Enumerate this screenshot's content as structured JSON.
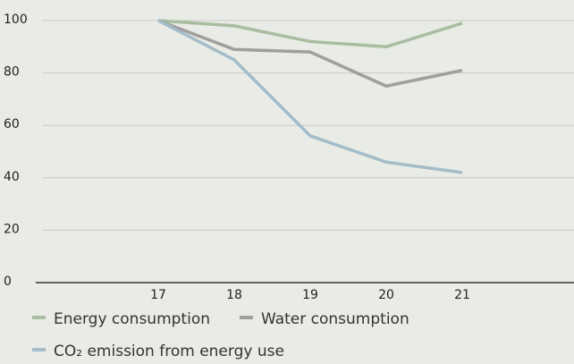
{
  "chart_data": {
    "type": "line",
    "categories": [
      "17",
      "18",
      "19",
      "20",
      "21"
    ],
    "series": [
      {
        "name": "Energy consumption",
        "color": "#a9bea0",
        "values": [
          100,
          98,
          92,
          90,
          99
        ]
      },
      {
        "name": "Water consumption",
        "color": "#a19e9e",
        "values": [
          100,
          89,
          88,
          75,
          81
        ]
      },
      {
        "name": "CO₂ emission from energy use",
        "color": "#a4bcc8",
        "values": [
          100,
          85,
          56,
          46,
          42
        ]
      }
    ],
    "ylim": [
      0,
      100
    ],
    "yticks": [
      0,
      20,
      40,
      60,
      80,
      100
    ],
    "grid": true
  }
}
